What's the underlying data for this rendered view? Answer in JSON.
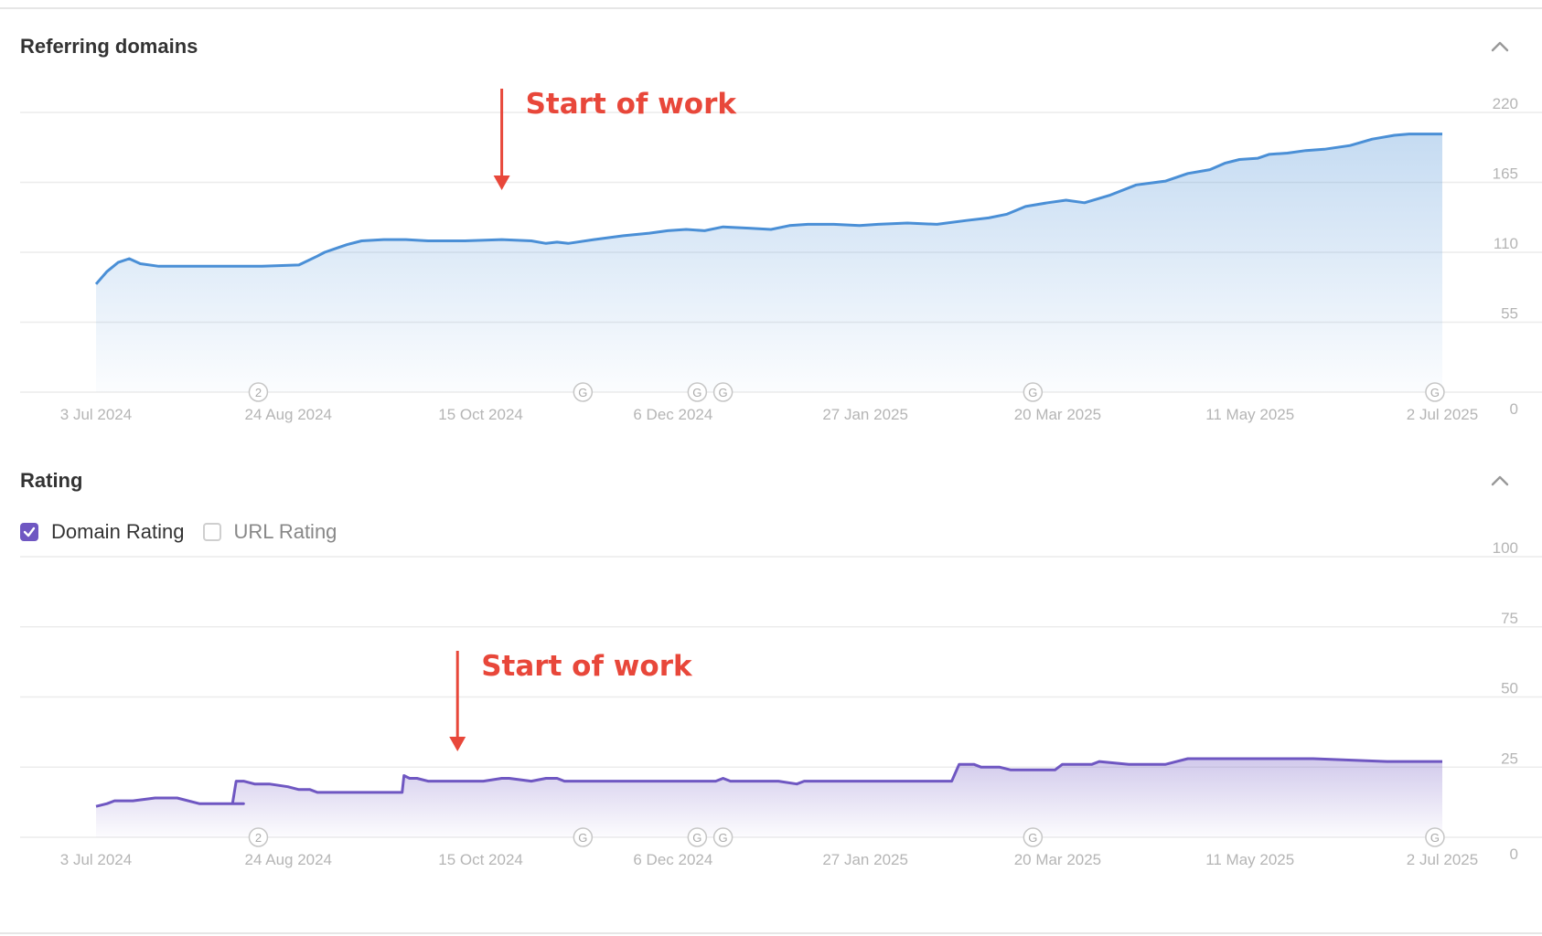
{
  "referring_domains": {
    "title": "Referring domains",
    "annotation": "Start of work",
    "chart_data": {
      "type": "area",
      "x_ticks": [
        "3 Jul 2024",
        "24 Aug 2024",
        "15 Oct 2024",
        "6 Dec 2024",
        "27 Jan 2025",
        "20 Mar 2025",
        "11 May 2025",
        "2 Jul 2025"
      ],
      "y_ticks": [
        "0",
        "55",
        "110",
        "165",
        "220"
      ],
      "ylim": [
        0,
        220
      ],
      "color": "#4a8fd6",
      "series": [
        {
          "x": [
            0,
            3,
            6,
            9,
            12,
            17,
            22,
            28,
            45,
            55,
            60,
            62,
            65,
            68,
            72,
            78,
            84,
            90,
            100,
            110,
            118,
            122,
            125,
            128,
            135,
            143,
            150,
            155,
            160,
            165,
            170,
            177,
            183,
            188,
            193,
            200,
            207,
            212,
            220,
            228,
            236,
            242,
            247,
            252,
            258,
            263,
            268,
            275,
            282,
            290,
            296,
            302,
            306,
            310,
            315,
            318,
            323,
            328,
            333,
            340,
            346,
            348,
            352,
            356,
            360,
            365
          ],
          "y": [
            85,
            95,
            102,
            105,
            101,
            99,
            99,
            99,
            99,
            100,
            107,
            110,
            113,
            116,
            119,
            120,
            120,
            119,
            119,
            120,
            119,
            117,
            118,
            117,
            120,
            123,
            125,
            127,
            128,
            127,
            130,
            129,
            128,
            131,
            132,
            132,
            131,
            132,
            133,
            132,
            135,
            137,
            140,
            146,
            149,
            151,
            149,
            155,
            163,
            166,
            172,
            175,
            180,
            183,
            184,
            187,
            188,
            190,
            191,
            194,
            199,
            200,
            202,
            203,
            203,
            203
          ]
        }
      ],
      "markers": [
        {
          "x": 44,
          "label": "2"
        },
        {
          "x": 132,
          "label": "G"
        },
        {
          "x": 163,
          "label": "G"
        },
        {
          "x": 170,
          "label": "G"
        },
        {
          "x": 254,
          "label": "G"
        },
        {
          "x": 363,
          "label": "G"
        }
      ],
      "annotation_x": 110
    }
  },
  "rating": {
    "title": "Rating",
    "checkboxes": [
      {
        "label": "Domain Rating",
        "checked": true
      },
      {
        "label": "URL Rating",
        "checked": false
      }
    ],
    "annotation": "Start of work",
    "chart_data": {
      "type": "area",
      "x_ticks": [
        "3 Jul 2024",
        "24 Aug 2024",
        "15 Oct 2024",
        "6 Dec 2024",
        "27 Jan 2025",
        "20 Mar 2025",
        "11 May 2025",
        "2 Jul 2025"
      ],
      "y_ticks": [
        "0",
        "25",
        "50",
        "75",
        "100"
      ],
      "ylim": [
        0,
        100
      ],
      "color": "#6f57c2",
      "series": [
        {
          "x": [
            0,
            3,
            5,
            10,
            16,
            22,
            28,
            30,
            35,
            40,
            37,
            38,
            40,
            43,
            47,
            52,
            55,
            58,
            60,
            70,
            80,
            83,
            83.5,
            85,
            87,
            90,
            95,
            105,
            110,
            112,
            118,
            122,
            125,
            127,
            133,
            140,
            150,
            160,
            168,
            170,
            172,
            175,
            185,
            190,
            192,
            195,
            205,
            215,
            230,
            232,
            234,
            238,
            240,
            245,
            248,
            260,
            262,
            270,
            272,
            280,
            290,
            293,
            296,
            300,
            320,
            330,
            350,
            365
          ],
          "y": [
            11,
            12,
            13,
            13,
            14,
            14,
            12,
            12,
            12,
            12,
            12,
            20,
            20,
            19,
            19,
            18,
            17,
            17,
            16,
            16,
            16,
            16,
            22,
            21,
            21,
            20,
            20,
            20,
            21,
            21,
            20,
            21,
            21,
            20,
            20,
            20,
            20,
            20,
            20,
            21,
            20,
            20,
            20,
            19,
            20,
            20,
            20,
            20,
            20,
            20,
            26,
            26,
            25,
            25,
            24,
            24,
            26,
            26,
            27,
            26,
            26,
            27,
            28,
            28,
            28,
            28,
            27,
            27
          ]
        }
      ],
      "markers": [
        {
          "x": 44,
          "label": "2"
        },
        {
          "x": 132,
          "label": "G"
        },
        {
          "x": 163,
          "label": "G"
        },
        {
          "x": 170,
          "label": "G"
        },
        {
          "x": 254,
          "label": "G"
        },
        {
          "x": 363,
          "label": "G"
        }
      ],
      "annotation_x": 98
    }
  }
}
